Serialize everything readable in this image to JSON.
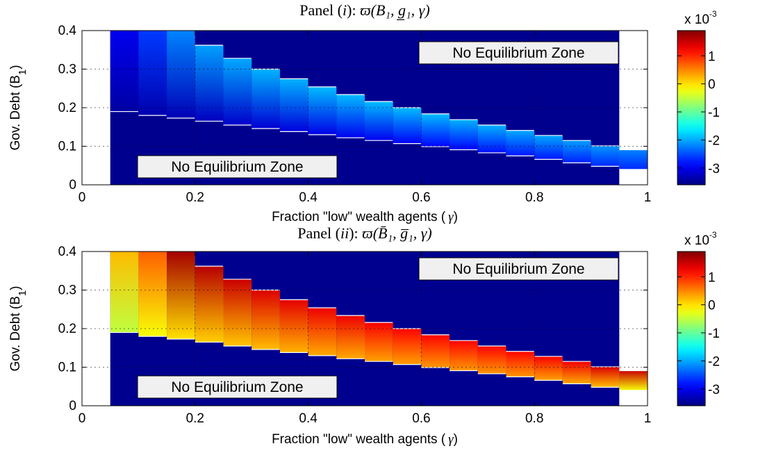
{
  "chart_data": [
    {
      "type": "heatmap",
      "panel_prefix": "Panel (",
      "panel_numeral": "i",
      "panel_suffix": "): ",
      "title_symbol": "ϖ",
      "title_args": "(B₁, g̲₁, γ)",
      "xlabel": "Fraction \"low\" wealth agents (",
      "xlabel_symbol": "γ",
      "xlabel_suffix": ")",
      "ylabel": "Gov. Debt (B",
      "ylabel_sub": "1",
      "ylabel_suffix": ")",
      "xlim": [
        0,
        1
      ],
      "ylim": [
        0,
        0.4
      ],
      "xticks": [
        "0",
        "0.2",
        "0.4",
        "0.6",
        "0.8",
        "1"
      ],
      "yticks": [
        "0",
        "0.1",
        "0.2",
        "0.3",
        "0.4"
      ],
      "background_color": "#00008f",
      "annotations": [
        "No Equilibrium Zone",
        "No Equilibrium Zone"
      ],
      "colorbar": {
        "multiplier": "x 10",
        "exponent": "-3",
        "range": [
          -3.6,
          1.9
        ],
        "ticks": [
          "1",
          "0",
          "-1",
          "-2",
          "-3"
        ],
        "tick_values": [
          1,
          0,
          -1,
          -2,
          -3
        ]
      },
      "gamma": [
        0.05,
        0.1,
        0.15,
        0.2,
        0.25,
        0.3,
        0.35,
        0.4,
        0.45,
        0.5,
        0.55,
        0.6,
        0.65,
        0.7,
        0.75,
        0.8,
        0.85,
        0.9,
        0.95
      ],
      "b_low": [
        0.19,
        0.18,
        0.173,
        0.165,
        0.155,
        0.146,
        0.138,
        0.13,
        0.122,
        0.115,
        0.107,
        0.099,
        0.091,
        0.083,
        0.075,
        0.066,
        0.057,
        0.048,
        0.04
      ],
      "b_high": [
        0.4,
        0.4,
        0.4,
        0.362,
        0.328,
        0.3,
        0.275,
        0.254,
        0.234,
        0.216,
        0.2,
        0.184,
        0.169,
        0.155,
        0.141,
        0.128,
        0.115,
        0.101,
        0.091
      ],
      "value_low_x1e3": [
        -3.4,
        -3.35,
        -3.3,
        -3.25,
        -3.2,
        -3.15,
        -3.1,
        -3.05,
        -3.0,
        -3.0,
        -2.95,
        -2.9,
        -2.9,
        -2.85,
        -2.8,
        -2.8,
        -2.75,
        -2.7,
        -2.7
      ],
      "value_high_x1e3": [
        -3.0,
        -2.6,
        -2.2,
        -2.05,
        -2.0,
        -1.95,
        -1.95,
        -1.9,
        -1.9,
        -1.9,
        -1.9,
        -1.9,
        -1.95,
        -1.95,
        -2.0,
        -2.0,
        -2.05,
        -2.1,
        -2.2
      ]
    },
    {
      "type": "heatmap",
      "panel_prefix": "Panel (",
      "panel_numeral": "ii",
      "panel_suffix": "): ",
      "title_symbol": "ϖ",
      "title_args": "(B̄₁, g̅₁, γ)",
      "xlabel": "Fraction \"low\" wealth agents (",
      "xlabel_symbol": "γ",
      "xlabel_suffix": ")",
      "ylabel": "Gov. Debt (B",
      "ylabel_sub": "1",
      "ylabel_suffix": ")",
      "xlim": [
        0,
        1
      ],
      "ylim": [
        0,
        0.4
      ],
      "xticks": [
        "0",
        "0.2",
        "0.4",
        "0.6",
        "0.8",
        "1"
      ],
      "yticks": [
        "0",
        "0.1",
        "0.2",
        "0.3",
        "0.4"
      ],
      "background_color": "#00008f",
      "annotations": [
        "No Equilibrium Zone",
        "No Equilibrium Zone"
      ],
      "colorbar": {
        "multiplier": "x 10",
        "exponent": "-3",
        "range": [
          -3.6,
          1.9
        ],
        "ticks": [
          "1",
          "0",
          "-1",
          "-2",
          "-3"
        ],
        "tick_values": [
          1,
          0,
          -1,
          -2,
          -3
        ]
      },
      "gamma": [
        0.05,
        0.1,
        0.15,
        0.2,
        0.25,
        0.3,
        0.35,
        0.4,
        0.45,
        0.5,
        0.55,
        0.6,
        0.65,
        0.7,
        0.75,
        0.8,
        0.85,
        0.9,
        0.95
      ],
      "b_low": [
        0.19,
        0.18,
        0.173,
        0.165,
        0.155,
        0.146,
        0.138,
        0.13,
        0.122,
        0.115,
        0.107,
        0.099,
        0.091,
        0.083,
        0.075,
        0.066,
        0.057,
        0.048,
        0.04
      ],
      "b_high": [
        0.4,
        0.4,
        0.4,
        0.362,
        0.328,
        0.3,
        0.275,
        0.254,
        0.234,
        0.216,
        0.2,
        0.184,
        0.169,
        0.155,
        0.141,
        0.128,
        0.115,
        0.101,
        0.091
      ],
      "value_low_x1e3": [
        -0.5,
        -0.2,
        0.0,
        0.1,
        0.15,
        0.2,
        0.25,
        0.3,
        0.3,
        0.35,
        0.35,
        0.4,
        0.4,
        0.4,
        0.4,
        0.35,
        0.3,
        0.2,
        -0.2
      ],
      "value_high_x1e3": [
        0.2,
        0.7,
        1.7,
        1.6,
        1.5,
        1.4,
        1.35,
        1.3,
        1.3,
        1.25,
        1.2,
        1.2,
        1.2,
        1.2,
        1.2,
        1.25,
        1.3,
        1.4,
        1.5
      ]
    }
  ]
}
